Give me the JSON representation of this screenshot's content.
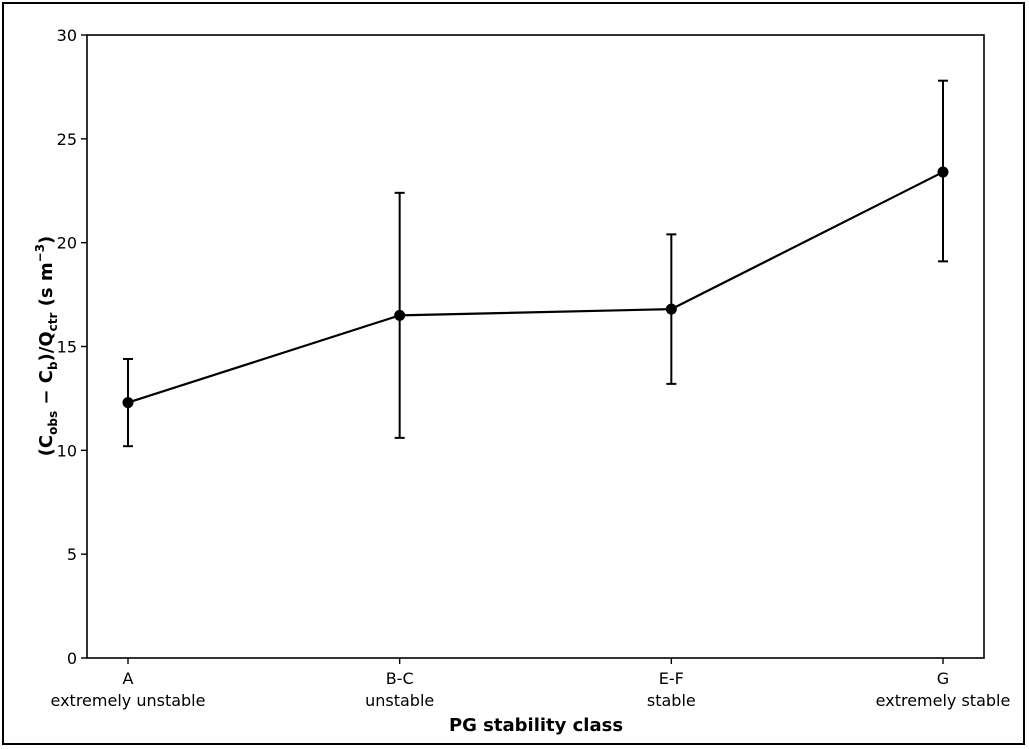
{
  "chart_data": {
    "type": "line",
    "title": "",
    "xlabel": "PG stability class",
    "ylabel": {
      "prefix": "(C",
      "sub1": "obs",
      "mid1": " − C",
      "sub2": "b",
      "mid2": ")/Q",
      "sub3": "ctr",
      "mid3": " (s m",
      "sup": "−3",
      "suffix": ")"
    },
    "ylim": [
      0,
      30
    ],
    "yticks": [
      0,
      5,
      10,
      15,
      20,
      25,
      30
    ],
    "categories": [
      {
        "code": "A",
        "label": "extremely unstable"
      },
      {
        "code": "B-C",
        "label": "unstable"
      },
      {
        "code": "E-F",
        "label": "stable"
      },
      {
        "code": "G",
        "label": "extremely stable"
      }
    ],
    "series": [
      {
        "values": [
          12.3,
          16.5,
          16.8,
          23.4
        ],
        "error_low": [
          10.2,
          10.6,
          13.2,
          19.1
        ],
        "error_high": [
          14.4,
          22.4,
          20.4,
          27.8
        ],
        "color": "#000000",
        "marker": "circle"
      }
    ],
    "grid": false,
    "legend": "none"
  }
}
